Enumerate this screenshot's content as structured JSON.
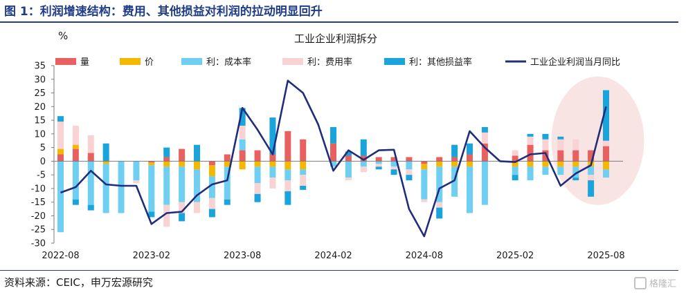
{
  "figure": {
    "title": "图 1：利润增速结构：费用、其他损益对利润的拉动明显回升",
    "source": "资料来源：CEIC，申万宏源研究",
    "watermark": "格隆汇"
  },
  "chart_data": {
    "type": "bar",
    "stacked": true,
    "title": "工业企业利润拆分",
    "unit_label": "%",
    "ylim": [
      -30,
      35
    ],
    "yticks": [
      35,
      30,
      25,
      20,
      15,
      10,
      5,
      0,
      -5,
      -10,
      -15,
      -20,
      -25,
      -30
    ],
    "grid": false,
    "legend_position": "top",
    "x_tick_labels": [
      "2022-08",
      "2023-02",
      "2023-08",
      "2024-02",
      "2024-08",
      "2025-02",
      "2025-08"
    ],
    "x_tick_indices": [
      0,
      6,
      12,
      18,
      24,
      30,
      36
    ],
    "categories": [
      "2022-08",
      "2022-09",
      "2022-10",
      "2022-11",
      "2022-12",
      "2023-01",
      "2023-02",
      "2023-03",
      "2023-04",
      "2023-05",
      "2023-06",
      "2023-07",
      "2023-08",
      "2023-09",
      "2023-10",
      "2023-11",
      "2023-12",
      "2024-01",
      "2024-02",
      "2024-03",
      "2024-04",
      "2024-05",
      "2024-06",
      "2024-07",
      "2024-08",
      "2024-09",
      "2024-10",
      "2024-11",
      "2024-12",
      "2025-01",
      "2025-02",
      "2025-03",
      "2025-04",
      "2025-05",
      "2025-06",
      "2025-07",
      "2025-08"
    ],
    "series": [
      {
        "name": "量",
        "kind": "bar",
        "color": "#e8605f",
        "values": [
          2.5,
          4.5,
          3.0,
          0,
          0,
          0,
          -0.5,
          1.5,
          4.5,
          0,
          -1.5,
          2.5,
          4,
          4,
          2.5,
          11,
          8,
          0,
          6.5,
          2,
          2,
          1.5,
          1.5,
          1.5,
          -1,
          1.5,
          1.5,
          2.5,
          6.5,
          0,
          2,
          6,
          4,
          4,
          4,
          4,
          5.5
        ]
      },
      {
        "name": "价",
        "kind": "bar",
        "color": "#f5b800",
        "values": [
          2,
          1.5,
          0,
          -1,
          0,
          0,
          -1,
          -2,
          -2,
          -3,
          -4,
          -2,
          -3,
          -2,
          -2,
          -3,
          -3,
          0,
          0,
          0,
          0,
          0,
          0,
          0,
          -2,
          -2,
          -2,
          -2,
          0,
          0,
          -2,
          -2,
          -2,
          -2,
          -2,
          -2,
          -3
        ]
      },
      {
        "name": "利：成本率",
        "kind": "bar",
        "color": "#6fcff2",
        "values": [
          -26,
          -14,
          -16,
          -18,
          -19,
          -7,
          -17,
          -14,
          -13,
          -12,
          -8,
          -12,
          4,
          -6,
          -4,
          -4,
          -2,
          0,
          -2,
          -6,
          -2,
          -1,
          -2,
          -3,
          -11,
          -13,
          -11,
          -17,
          -16,
          0,
          -3,
          -5,
          -3,
          -3,
          -4,
          -3,
          -3
        ]
      },
      {
        "name": "利：费用率",
        "kind": "bar",
        "color": "#f9d3d3",
        "values": [
          10,
          7,
          6.5,
          0,
          0,
          -1,
          0,
          -8,
          -4,
          -4,
          -4,
          0,
          5,
          -4,
          -4,
          -4,
          -4,
          0,
          0,
          -1,
          -2,
          -1,
          -1,
          -2,
          -1,
          -2,
          0,
          0,
          4,
          0,
          2,
          3,
          4,
          4,
          4,
          -2,
          2
        ]
      },
      {
        "name": "利：其他损益率",
        "kind": "bar",
        "color": "#1aa4dc",
        "values": [
          2,
          -2,
          -2,
          6.5,
          0,
          0,
          -2,
          3.5,
          -3,
          6,
          -3,
          -2,
          6.5,
          -3,
          13.5,
          -5,
          -1.5,
          0,
          6,
          1.5,
          6,
          -1,
          -2,
          -2,
          0,
          -4,
          4.5,
          4,
          2,
          0,
          -2,
          1,
          2,
          1,
          -1,
          -6,
          18.5
        ]
      },
      {
        "name": "工业企业利润当月同比",
        "kind": "line",
        "color": "#1f2d7a",
        "values": [
          -11.5,
          -9.5,
          -3.5,
          -8.5,
          -9,
          -9,
          -23,
          -19,
          -18.5,
          -12.5,
          -8.5,
          -7,
          19.5,
          11.5,
          2.5,
          29.5,
          25,
          13.5,
          -3.5,
          4,
          0.5,
          4,
          4.2,
          -17.5,
          -27.5,
          -10,
          -7,
          11,
          5,
          0,
          -0.3,
          2.5,
          3,
          -9,
          -4.5,
          -1.5,
          20
        ]
      }
    ]
  }
}
